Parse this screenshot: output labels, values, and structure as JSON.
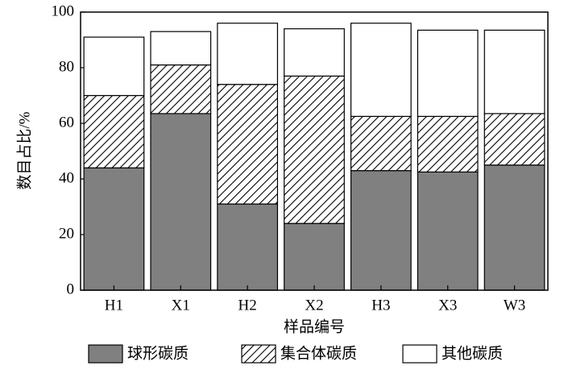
{
  "chart_data": {
    "type": "stacked-bar",
    "y_label": "数目占比/%",
    "x_label": "样品编号",
    "categories": [
      "H1",
      "X1",
      "H2",
      "X2",
      "H3",
      "X3",
      "W3"
    ],
    "series": [
      {
        "name": "球形碳质",
        "color": "#808080",
        "pattern": "solid",
        "values": [
          44,
          63.5,
          31,
          24,
          43,
          42.5,
          45
        ]
      },
      {
        "name": "集合体碳质",
        "color": "#000000",
        "pattern": "hatch",
        "values": [
          26,
          17.5,
          43,
          53,
          19.5,
          20,
          18.5
        ]
      },
      {
        "name": "其他碳质",
        "color": "#ffffff",
        "pattern": "solid",
        "values": [
          21,
          12,
          22,
          17,
          33.5,
          31,
          30
        ]
      }
    ],
    "ylim": [
      0,
      100
    ],
    "yticks": [
      0,
      20,
      40,
      60,
      80,
      100
    ],
    "legend": "bottom"
  }
}
